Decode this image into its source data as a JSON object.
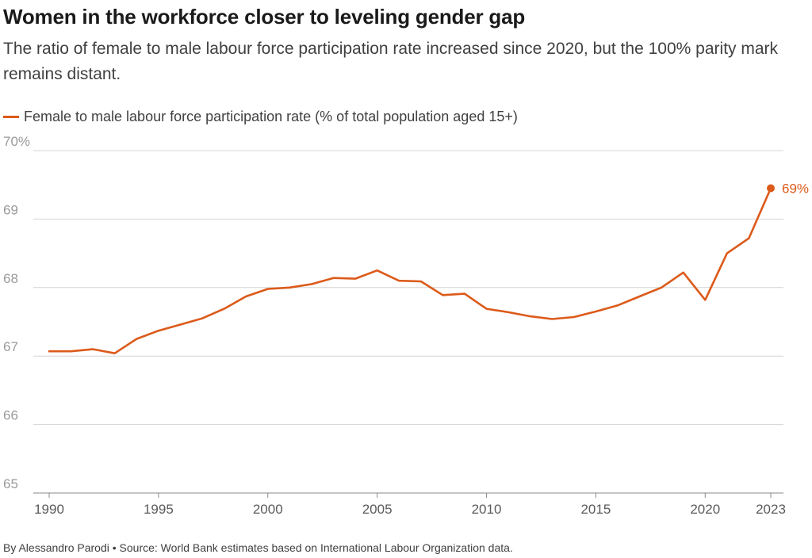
{
  "header": {
    "title": "Women in the workforce closer to leveling gender gap",
    "subtitle": "The ratio of female to male labour force participation rate increased since 2020, but the 100% parity mark remains distant."
  },
  "footer": {
    "credit": "By Alessandro Parodi • Source: World Bank estimates based on International Labour Organization data."
  },
  "colors": {
    "series": "#dc5a1a",
    "grid": "#d4d4d4",
    "axis": "#8a8a8a",
    "ytick_text": "#9a9a9a",
    "xtick_text": "#5a5a5a"
  },
  "chart_data": {
    "type": "line",
    "title": "Women in the workforce closer to leveling gender gap",
    "subtitle": "The ratio of female to male labour force participation rate increased since 2020, but the 100% parity mark remains distant.",
    "xlabel": "",
    "ylabel": "",
    "xlim": [
      1990,
      2023
    ],
    "ylim": [
      65,
      70
    ],
    "grid": true,
    "legend_position": "top-left",
    "y_ticks": [
      {
        "value": 65,
        "label": "65"
      },
      {
        "value": 66,
        "label": "66"
      },
      {
        "value": 67,
        "label": "67"
      },
      {
        "value": 68,
        "label": "68"
      },
      {
        "value": 69,
        "label": "69"
      },
      {
        "value": 70,
        "label": "70%"
      }
    ],
    "x_ticks": [
      {
        "value": 1990,
        "label": "1990"
      },
      {
        "value": 1995,
        "label": "1995"
      },
      {
        "value": 2000,
        "label": "2000"
      },
      {
        "value": 2005,
        "label": "2005"
      },
      {
        "value": 2010,
        "label": "2010"
      },
      {
        "value": 2015,
        "label": "2015"
      },
      {
        "value": 2020,
        "label": "2020"
      },
      {
        "value": 2023,
        "label": "2023"
      }
    ],
    "series": [
      {
        "name": "Female to male labour force participation rate (% of total population aged 15+)",
        "x": [
          1990,
          1991,
          1992,
          1993,
          1994,
          1995,
          1996,
          1997,
          1998,
          1999,
          2000,
          2001,
          2002,
          2003,
          2004,
          2005,
          2006,
          2007,
          2008,
          2009,
          2010,
          2011,
          2012,
          2013,
          2014,
          2015,
          2016,
          2017,
          2018,
          2019,
          2020,
          2021,
          2022,
          2023
        ],
        "values": [
          67.07,
          67.07,
          67.1,
          67.04,
          67.25,
          67.37,
          67.46,
          67.55,
          67.69,
          67.87,
          67.98,
          68.0,
          68.05,
          68.14,
          68.13,
          68.25,
          68.1,
          68.09,
          67.89,
          67.91,
          67.69,
          67.64,
          67.58,
          67.54,
          67.57,
          67.65,
          67.74,
          67.87,
          68.0,
          68.22,
          67.82,
          68.5,
          68.72,
          69.45
        ]
      }
    ],
    "annotations": [
      {
        "x": 2023,
        "y": 69.45,
        "label": "69%"
      }
    ]
  }
}
